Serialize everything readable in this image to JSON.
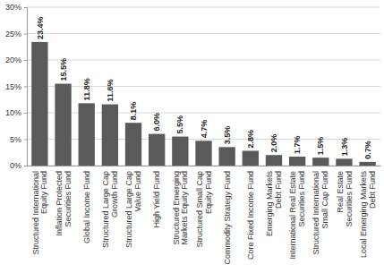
{
  "chart_data": {
    "type": "bar",
    "categories": [
      "Structured International Equity Fund",
      "Inflation Protected Securities Fund",
      "Global Income Fund",
      "Structured Large Cap Growth Fund",
      "Structured Large Cap Value Fund",
      "High Yield Fund",
      "Structured Emerging Markets Equity Fund",
      "Structured Small Cap Equity Fund",
      "Commodity Strategy Fund",
      "Core Fixed Income Fund",
      "Emerging Markets Debt Fund",
      "International Real Estate Securities Fund",
      "Structured International Small Cap Fund",
      "Real Estate Securities Fund",
      "Local Emerging Markets Debt Fund"
    ],
    "values": [
      23.4,
      15.5,
      11.8,
      11.6,
      8.1,
      6.0,
      5.5,
      4.7,
      3.5,
      2.8,
      2.0,
      1.7,
      1.5,
      1.3,
      0.7
    ],
    "value_labels": [
      "23.4%",
      "15.5%",
      "11.8%",
      "11.6%",
      "8.1%",
      "6.0%",
      "5.5%",
      "4.7%",
      "3.5%",
      "2.8%",
      "2.0%",
      "1.7%",
      "1.5%",
      "1.3%",
      "0.7%"
    ],
    "color": "#595a5c",
    "ylim": [
      0,
      30
    ],
    "yticks": [
      {
        "value": 0,
        "label": "0%"
      },
      {
        "value": 5,
        "label": "5%"
      },
      {
        "value": 10,
        "label": "10%"
      },
      {
        "value": 15,
        "label": "15%"
      },
      {
        "value": 20,
        "label": "20%"
      },
      {
        "value": 25,
        "label": "25%"
      },
      {
        "value": 30,
        "label": "30%"
      }
    ],
    "grid": true,
    "data_labels": true
  }
}
